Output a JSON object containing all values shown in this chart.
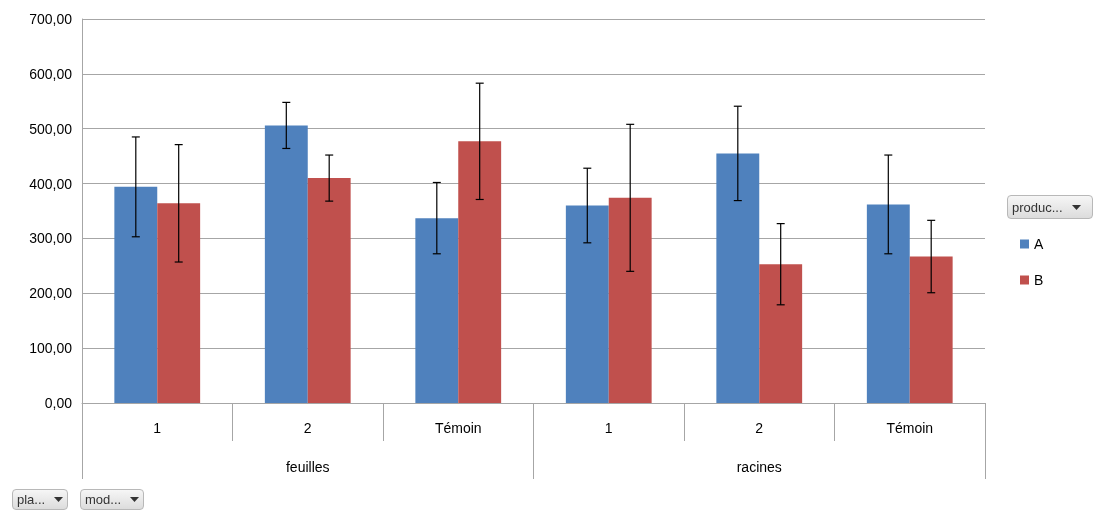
{
  "chart_data": {
    "type": "bar",
    "categories": [
      "1",
      "2",
      "Témoin",
      "1",
      "2",
      "Témoin"
    ],
    "legend_title": "produc...",
    "series": [
      {
        "name": "A",
        "color": "#4f81bd",
        "values": [
          394,
          506,
          337,
          360,
          455,
          362
        ],
        "errors": [
          91,
          42,
          65,
          68,
          86,
          90
        ]
      },
      {
        "name": "B",
        "color": "#c0504d",
        "values": [
          364,
          410,
          477,
          374,
          253,
          267
        ],
        "errors": [
          107,
          42,
          106,
          134,
          74,
          66
        ]
      }
    ],
    "ylim": [
      0,
      700
    ],
    "yticks": [
      {
        "value": 0,
        "label": "0,00"
      },
      {
        "value": 100,
        "label": "100,00"
      },
      {
        "value": 200,
        "label": "200,00"
      },
      {
        "value": 300,
        "label": "300,00"
      },
      {
        "value": 400,
        "label": "400,00"
      },
      {
        "value": 500,
        "label": "500,00"
      },
      {
        "value": 600,
        "label": "600,00"
      },
      {
        "value": 700,
        "label": "700,00"
      }
    ],
    "grid": "y",
    "legend": "right",
    "annotations": [
      "feuilles",
      "racines",
      "pla...",
      "mod..."
    ]
  }
}
